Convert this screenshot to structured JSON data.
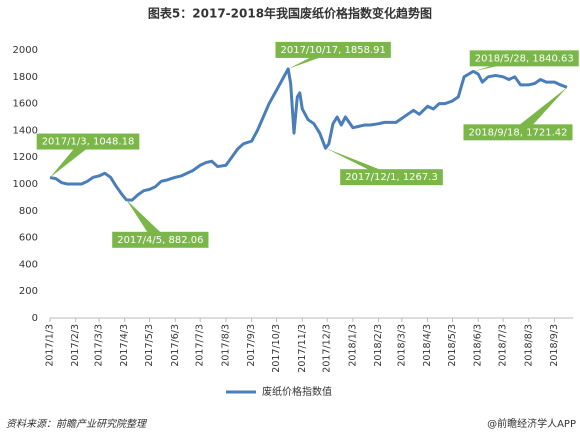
{
  "chart_data": {
    "type": "line",
    "title": "图表5：2017-2018年我国废纸价格指数变化趋势图",
    "x": [
      "2017/1/3",
      "2017/1/10",
      "2017/1/17",
      "2017/1/24",
      "2017/2/3",
      "2017/2/10",
      "2017/2/17",
      "2017/2/24",
      "2017/3/3",
      "2017/3/10",
      "2017/3/17",
      "2017/3/24",
      "2017/3/31",
      "2017/4/5",
      "2017/4/12",
      "2017/4/19",
      "2017/4/26",
      "2017/5/3",
      "2017/5/10",
      "2017/5/17",
      "2017/5/24",
      "2017/6/3",
      "2017/6/10",
      "2017/6/17",
      "2017/6/24",
      "2017/7/3",
      "2017/7/10",
      "2017/7/17",
      "2017/7/24",
      "2017/8/3",
      "2017/8/10",
      "2017/8/17",
      "2017/8/24",
      "2017/9/3",
      "2017/9/10",
      "2017/9/17",
      "2017/9/24",
      "2017/10/3",
      "2017/10/10",
      "2017/10/17",
      "2017/10/20",
      "2017/10/24",
      "2017/10/28",
      "2017/10/31",
      "2017/11/3",
      "2017/11/10",
      "2017/11/17",
      "2017/11/24",
      "2017/12/1",
      "2017/12/5",
      "2017/12/10",
      "2017/12/15",
      "2017/12/20",
      "2017/12/25",
      "2018/1/3",
      "2018/1/10",
      "2018/1/17",
      "2018/1/24",
      "2018/2/3",
      "2018/2/10",
      "2018/2/24",
      "2018/3/3",
      "2018/3/10",
      "2018/3/17",
      "2018/3/24",
      "2018/4/3",
      "2018/4/10",
      "2018/4/17",
      "2018/4/24",
      "2018/5/3",
      "2018/5/10",
      "2018/5/17",
      "2018/5/28",
      "2018/6/3",
      "2018/6/8",
      "2018/6/15",
      "2018/6/24",
      "2018/7/3",
      "2018/7/10",
      "2018/7/17",
      "2018/7/24",
      "2018/8/3",
      "2018/8/10",
      "2018/8/17",
      "2018/8/24",
      "2018/9/3",
      "2018/9/10",
      "2018/9/18"
    ],
    "series": [
      {
        "name": "废纸价格指数值",
        "color": "#4a7ebb",
        "values": [
          1048.18,
          1040,
          1010,
          1000,
          1000,
          1000,
          1020,
          1050,
          1060,
          1080,
          1050,
          980,
          920,
          882.06,
          880,
          920,
          950,
          960,
          980,
          1020,
          1030,
          1050,
          1060,
          1080,
          1100,
          1140,
          1160,
          1170,
          1130,
          1140,
          1200,
          1260,
          1300,
          1320,
          1400,
          1500,
          1600,
          1700,
          1780,
          1858.91,
          1750,
          1380,
          1650,
          1680,
          1560,
          1480,
          1450,
          1380,
          1267.3,
          1300,
          1450,
          1500,
          1440,
          1500,
          1420,
          1430,
          1440,
          1440,
          1450,
          1460,
          1460,
          1490,
          1520,
          1550,
          1520,
          1580,
          1560,
          1600,
          1600,
          1620,
          1650,
          1800,
          1840.63,
          1820,
          1760,
          1800,
          1810,
          1800,
          1780,
          1800,
          1740,
          1740,
          1750,
          1780,
          1760,
          1760,
          1740,
          1721.42
        ]
      }
    ],
    "xlim": [
      "2017/1/3",
      "2018/9/18"
    ],
    "xticks": [
      "2017/1/3",
      "2017/2/3",
      "2017/3/3",
      "2017/4/3",
      "2017/5/3",
      "2017/6/3",
      "2017/7/3",
      "2017/8/3",
      "2017/9/3",
      "2017/10/3",
      "2017/11/3",
      "2017/12/3",
      "2018/1/3",
      "2018/2/3",
      "2018/3/3",
      "2018/4/3",
      "2018/5/3",
      "2018/6/3",
      "2018/7/3",
      "2018/8/3",
      "2018/9/3"
    ],
    "ylim": [
      0,
      2000
    ],
    "yticks": [
      0,
      200,
      400,
      600,
      800,
      1000,
      1200,
      1400,
      1600,
      1800,
      2000
    ],
    "grid": false,
    "annotations": [
      {
        "x": "2017/1/3",
        "y": 1048.18,
        "label": "2017/1/3, 1048.18"
      },
      {
        "x": "2017/4/5",
        "y": 882.06,
        "label": "2017/4/5, 882.06"
      },
      {
        "x": "2017/10/17",
        "y": 1858.91,
        "label": "2017/10/17, 1858.91"
      },
      {
        "x": "2017/12/1",
        "y": 1267.3,
        "label": "2017/12/1, 1267.3"
      },
      {
        "x": "2018/5/28",
        "y": 1840.63,
        "label": "2018/5/28, 1840.63"
      },
      {
        "x": "2018/9/18",
        "y": 1721.42,
        "label": "2018/9/18, 1721.42"
      }
    ],
    "annotation_color": "#7ab648",
    "source": "资料来源：前瞻产业研究院整理",
    "brand": "@前瞻经济学人APP"
  }
}
